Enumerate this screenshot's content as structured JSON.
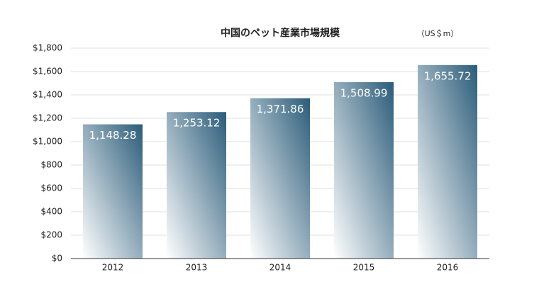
{
  "chart_data": {
    "type": "bar",
    "title": "中国のペット産業市場規模",
    "unit_note": "（US＄m）",
    "categories": [
      "2012",
      "2013",
      "2014",
      "2015",
      "2016"
    ],
    "values": [
      1148.28,
      1253.12,
      1371.86,
      1508.99,
      1655.72
    ],
    "value_labels": [
      "1,148.28",
      "1,253.12",
      "1,371.86",
      "1,508.99",
      "1,655.72"
    ],
    "color": "#2b5c7a",
    "ylim": [
      0,
      1800
    ],
    "yticks": [
      {
        "value": 0,
        "label": "$0"
      },
      {
        "value": 200,
        "label": "$200"
      },
      {
        "value": 400,
        "label": "$400"
      },
      {
        "value": 600,
        "label": "$600"
      },
      {
        "value": 800,
        "label": "$800"
      },
      {
        "value": 1000,
        "label": "$1,000"
      },
      {
        "value": 1200,
        "label": "$1,200"
      },
      {
        "value": 1400,
        "label": "$1,400"
      },
      {
        "value": 1600,
        "label": "$1,600"
      },
      {
        "value": 1800,
        "label": "$1,800"
      }
    ],
    "grid": true
  }
}
